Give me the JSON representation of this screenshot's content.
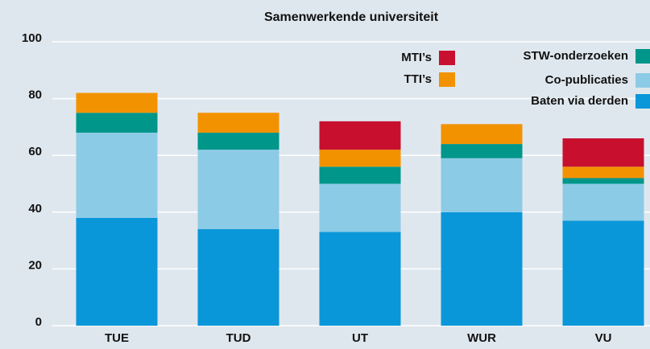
{
  "chart_data": {
    "type": "stacked_bar",
    "title": "Samenwerkende universiteit",
    "categories": [
      "TUE",
      "TUD",
      "UT",
      "WUR",
      "VU"
    ],
    "series": [
      {
        "name": "Baten via derden",
        "color": "#0a97d9",
        "values": [
          38,
          34,
          33,
          40,
          37
        ]
      },
      {
        "name": "Co-publicaties",
        "color": "#8ccbe6",
        "values": [
          30,
          28,
          17,
          19,
          13
        ]
      },
      {
        "name": "STW-onderzoeken",
        "color": "#00968a",
        "values": [
          7,
          6,
          6,
          5,
          2
        ]
      },
      {
        "name": "TTI’s",
        "color": "#f39200",
        "values": [
          7,
          7,
          6,
          7,
          4
        ]
      },
      {
        "name": "MTI’s",
        "color": "#c8102e",
        "values": [
          0,
          0,
          10,
          0,
          10
        ]
      }
    ],
    "ylim": [
      0,
      100
    ],
    "yticks": [
      0,
      20,
      40,
      60,
      80,
      100
    ],
    "grid": true
  }
}
